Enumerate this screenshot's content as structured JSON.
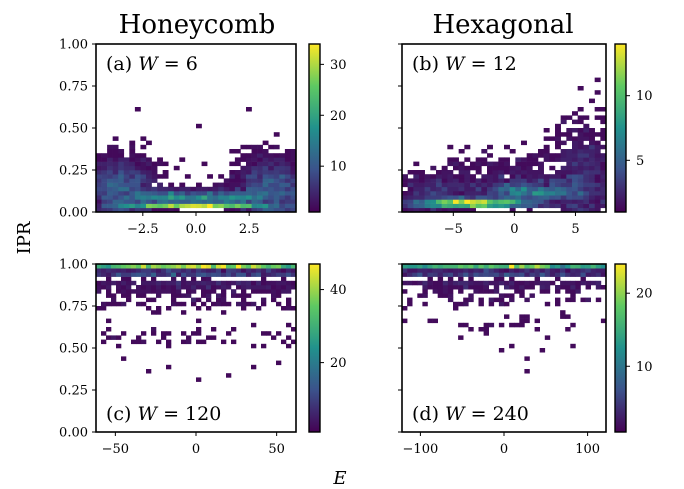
{
  "figure": {
    "column_titles": [
      "Honeycomb",
      "Hexagonal"
    ],
    "shared_ylabel": "IPR",
    "shared_xlabel": "E"
  },
  "colormap": {
    "name": "viridis",
    "stops": [
      "#440154",
      "#3b528b",
      "#21918c",
      "#5ec962",
      "#fde725"
    ]
  },
  "chart_data": [
    {
      "type": "heatmap",
      "panel": "a",
      "label_prefix": "(a) ",
      "label_param": "W",
      "label_value": "6",
      "xlim": [
        -4.7,
        4.7
      ],
      "ylim": [
        0,
        1
      ],
      "xticks": [
        -2.5,
        0.0,
        2.5
      ],
      "xtick_labels": [
        "−2.5",
        "0.0",
        "2.5"
      ],
      "yticks": [
        0,
        0.25,
        0.5,
        0.75,
        1.0
      ],
      "ytick_labels": [
        "0.00",
        "0.25",
        "0.50",
        "0.75",
        "1.00"
      ],
      "colorbar": {
        "range": [
          1,
          34
        ],
        "ticks": [
          10,
          20,
          30
        ],
        "tick_labels": [
          "10",
          "20",
          "30"
        ]
      },
      "bins": {
        "nx": 36,
        "ny": 40
      },
      "clusters": [
        {
          "x": -3.6,
          "y": 0.15,
          "sx": 0.9,
          "sy": 0.09,
          "count": 1500
        },
        {
          "x": 3.6,
          "y": 0.15,
          "sx": 0.9,
          "sy": 0.09,
          "count": 1500
        },
        {
          "x": 0.0,
          "y": 0.03,
          "sx": 2.0,
          "sy": 0.015,
          "count": 1700
        },
        {
          "x": -1.4,
          "y": 0.07,
          "sx": 1.0,
          "sy": 0.03,
          "count": 600
        },
        {
          "x": 1.4,
          "y": 0.07,
          "sx": 1.0,
          "sy": 0.03,
          "count": 600
        }
      ],
      "outliers": [
        [
          -2.7,
          0.62
        ],
        [
          2.6,
          0.62
        ],
        [
          0.0,
          0.5
        ],
        [
          -3.8,
          0.44
        ],
        [
          3.9,
          0.46
        ],
        [
          -3.0,
          0.38
        ],
        [
          3.2,
          0.4
        ],
        [
          -0.3,
          0.2
        ],
        [
          0.5,
          0.28
        ]
      ]
    },
    {
      "type": "heatmap",
      "panel": "b",
      "label_prefix": "(b) ",
      "label_param": "W",
      "label_value": "12",
      "xlim": [
        -9.2,
        7.5
      ],
      "ylim": [
        0,
        1
      ],
      "xticks": [
        -5,
        0,
        5
      ],
      "xtick_labels": [
        "−5",
        "0",
        "5"
      ],
      "yticks": [
        0,
        0.25,
        0.5,
        0.75,
        1.0
      ],
      "ytick_labels": [
        "0.00",
        "0.25",
        "0.50",
        "0.75",
        "1.00"
      ],
      "colorbar": {
        "range": [
          1,
          14
        ],
        "ticks": [
          5,
          10
        ],
        "tick_labels": [
          "5",
          "10"
        ]
      },
      "bins": {
        "nx": 36,
        "ny": 40
      },
      "clusters": [
        {
          "x": -3.5,
          "y": 0.04,
          "sx": 3.0,
          "sy": 0.02,
          "count": 1500
        },
        {
          "x": 1.5,
          "y": 0.09,
          "sx": 2.6,
          "sy": 0.05,
          "count": 900
        },
        {
          "x": 5.6,
          "y": 0.22,
          "sx": 1.2,
          "sy": 0.15,
          "count": 600
        },
        {
          "x": -6.5,
          "y": 0.12,
          "sx": 1.6,
          "sy": 0.07,
          "count": 350
        },
        {
          "x": -1.0,
          "y": 0.2,
          "sx": 2.5,
          "sy": 0.08,
          "count": 250
        }
      ],
      "outliers": [
        [
          6.9,
          0.78
        ],
        [
          7.0,
          0.72
        ],
        [
          6.3,
          0.66
        ],
        [
          6.7,
          0.6
        ],
        [
          7.1,
          0.55
        ],
        [
          5.8,
          0.52
        ],
        [
          6.6,
          0.47
        ],
        [
          3.2,
          0.44
        ],
        [
          4.1,
          0.42
        ],
        [
          2.3,
          0.36
        ],
        [
          -3.8,
          0.3
        ],
        [
          -0.8,
          0.38
        ],
        [
          1.0,
          0.4
        ],
        [
          -2.0,
          0.34
        ]
      ]
    },
    {
      "type": "heatmap",
      "panel": "c",
      "label_prefix": "(c) ",
      "label_param": "W",
      "label_value": "120",
      "xlim": [
        -62,
        62
      ],
      "ylim": [
        0,
        1
      ],
      "xticks": [
        -50,
        0,
        50
      ],
      "xtick_labels": [
        "−50",
        "0",
        "50"
      ],
      "yticks": [
        0,
        0.25,
        0.5,
        0.75,
        1.0
      ],
      "ytick_labels": [
        "0.00",
        "0.25",
        "0.50",
        "0.75",
        "1.00"
      ],
      "colorbar": {
        "range": [
          1,
          47
        ],
        "ticks": [
          20,
          40
        ],
        "tick_labels": [
          "20",
          "40"
        ]
      },
      "bins": {
        "nx": 40,
        "ny": 40
      },
      "clusters": [
        {
          "x": 0,
          "y": 0.985,
          "sx": 60,
          "sy": 0.004,
          "count": 3000
        },
        {
          "x": 0,
          "y": 0.955,
          "sx": 60,
          "sy": 0.012,
          "count": 900
        },
        {
          "x": 0,
          "y": 0.9,
          "sx": 60,
          "sy": 0.035,
          "count": 350
        },
        {
          "x": 0,
          "y": 0.72,
          "sx": 60,
          "sy": 0.12,
          "count": 220
        },
        {
          "x": 0,
          "y": 0.52,
          "sx": 60,
          "sy": 0.06,
          "count": 80
        }
      ],
      "outliers": [
        [
          -28,
          0.36
        ],
        [
          -16,
          0.38
        ],
        [
          0,
          0.32
        ],
        [
          20,
          0.34
        ],
        [
          36,
          0.38
        ],
        [
          -44,
          0.44
        ],
        [
          50,
          0.42
        ]
      ]
    },
    {
      "type": "heatmap",
      "panel": "d",
      "label_prefix": "(d) ",
      "label_param": "W",
      "label_value": "240",
      "xlim": [
        -122,
        122
      ],
      "ylim": [
        0,
        1
      ],
      "xticks": [
        -100,
        0,
        100
      ],
      "xtick_labels": [
        "−100",
        "0",
        "100"
      ],
      "yticks": [
        0,
        0.25,
        0.5,
        0.75,
        1.0
      ],
      "ytick_labels": [
        "0.00",
        "0.25",
        "0.50",
        "0.75",
        "1.00"
      ],
      "colorbar": {
        "range": [
          1,
          24
        ],
        "ticks": [
          10,
          20
        ],
        "tick_labels": [
          "10",
          "20"
        ]
      },
      "bins": {
        "nx": 40,
        "ny": 40
      },
      "clusters": [
        {
          "x": 0,
          "y": 0.985,
          "sx": 120,
          "sy": 0.004,
          "count": 2000
        },
        {
          "x": 0,
          "y": 0.955,
          "sx": 120,
          "sy": 0.012,
          "count": 650
        },
        {
          "x": 0,
          "y": 0.9,
          "sx": 120,
          "sy": 0.03,
          "count": 250
        },
        {
          "x": 0,
          "y": 0.76,
          "sx": 120,
          "sy": 0.07,
          "count": 110
        },
        {
          "x": 0,
          "y": 0.6,
          "sx": 120,
          "sy": 0.06,
          "count": 40
        }
      ],
      "outliers": [
        [
          -50,
          0.56
        ],
        [
          -20,
          0.58
        ],
        [
          12,
          0.52
        ],
        [
          50,
          0.55
        ],
        [
          -5,
          0.48
        ],
        [
          80,
          0.5
        ],
        [
          30,
          0.44
        ],
        [
          44,
          0.48
        ],
        [
          26,
          0.35
        ]
      ]
    }
  ]
}
